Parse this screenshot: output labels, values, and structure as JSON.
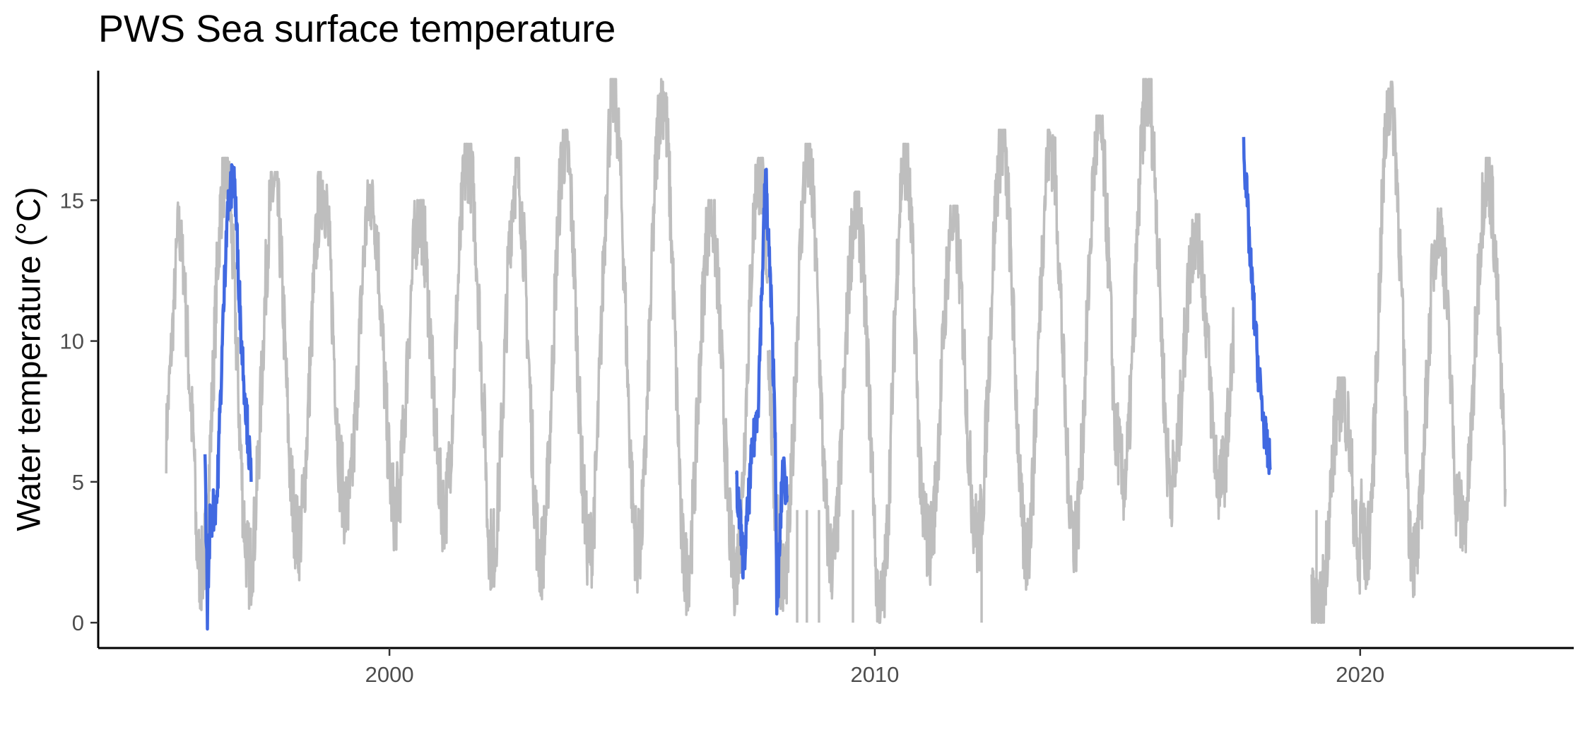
{
  "chart_data": {
    "type": "line",
    "title": "PWS Sea surface temperature",
    "xlabel": "",
    "ylabel": "Water temperature  (°C)",
    "xlim": [
      1994.0,
      2024.4
    ],
    "ylim": [
      -0.9,
      19.6
    ],
    "x_ticks": [
      2000,
      2010,
      2020
    ],
    "y_ticks": [
      0,
      5,
      10,
      15
    ],
    "grid": false,
    "legend": "none",
    "series": [
      {
        "color": "#bebebe",
        "style": "seasonal",
        "segments": [
          {
            "start": 1995.4,
            "end": 1995.8,
            "points": [
              [
                1995.4,
                6.5
              ],
              [
                1995.55,
                11.0
              ],
              [
                1995.65,
                14.2
              ],
              [
                1995.8,
                12.0
              ]
            ]
          },
          {
            "start": 1995.8,
            "end": 2001.0,
            "peaks": [
              14.0,
              16.0,
              15.5,
              15.5,
              15.2,
              14.5
            ],
            "troughs": [
              4.0,
              1.8,
              2.0,
              3.0,
              4.0
            ]
          },
          {
            "start": 2001.0,
            "end": 2007.8,
            "peaks": [
              16.5,
              16.0,
              17.0,
              18.8,
              18.8,
              14.5,
              16.0
            ],
            "troughs": [
              4.0,
              2.5,
              2.3,
              2.5,
              2.5,
              1.8
            ]
          },
          {
            "start": 2007.8,
            "end": 2017.4,
            "peaks": [
              14.5,
              16.5,
              14.8,
              16.5,
              14.3,
              17.0,
              17.0,
              17.5,
              18.8,
              14.0
            ],
            "troughs": [
              0.0,
              1.5,
              2.2,
              0.5,
              2.8,
              3.0,
              2.5,
              3.2,
              5.0
            ]
          },
          {
            "start": 2019.0,
            "end": 2023.0,
            "peaks": [
              8.2,
              18.7,
              14.2,
              16.0,
              16.5
            ],
            "troughs": [
              0.0,
              2.5,
              2.3,
              3.5
            ]
          }
        ]
      },
      {
        "color": "#4169e1",
        "style": "highlight",
        "segments": [
          {
            "points": [
              [
                1996.2,
                5.8
              ],
              [
                1996.25,
                0.5
              ],
              [
                1996.3,
                3.5
              ],
              [
                1996.45,
                4.5
              ],
              [
                1996.65,
                14.5
              ],
              [
                1996.8,
                16.0
              ],
              [
                1996.95,
                10.0
              ],
              [
                1997.15,
                5.0
              ]
            ]
          },
          {
            "points": [
              [
                2007.15,
                5.0
              ],
              [
                2007.3,
                2.0
              ],
              [
                2007.45,
                5.5
              ],
              [
                2007.6,
                8.0
              ],
              [
                2007.75,
                16.0
              ],
              [
                2007.85,
                12.0
              ],
              [
                2007.95,
                7.0
              ],
              [
                2007.98,
                0.0
              ],
              [
                2008.1,
                5.5
              ],
              [
                2008.2,
                4.5
              ]
            ]
          },
          {
            "points": [
              [
                2017.6,
                17.0
              ],
              [
                2017.75,
                12.5
              ],
              [
                2017.9,
                9.0
              ],
              [
                2018.05,
                6.5
              ],
              [
                2018.15,
                5.5
              ]
            ]
          }
        ]
      }
    ]
  }
}
